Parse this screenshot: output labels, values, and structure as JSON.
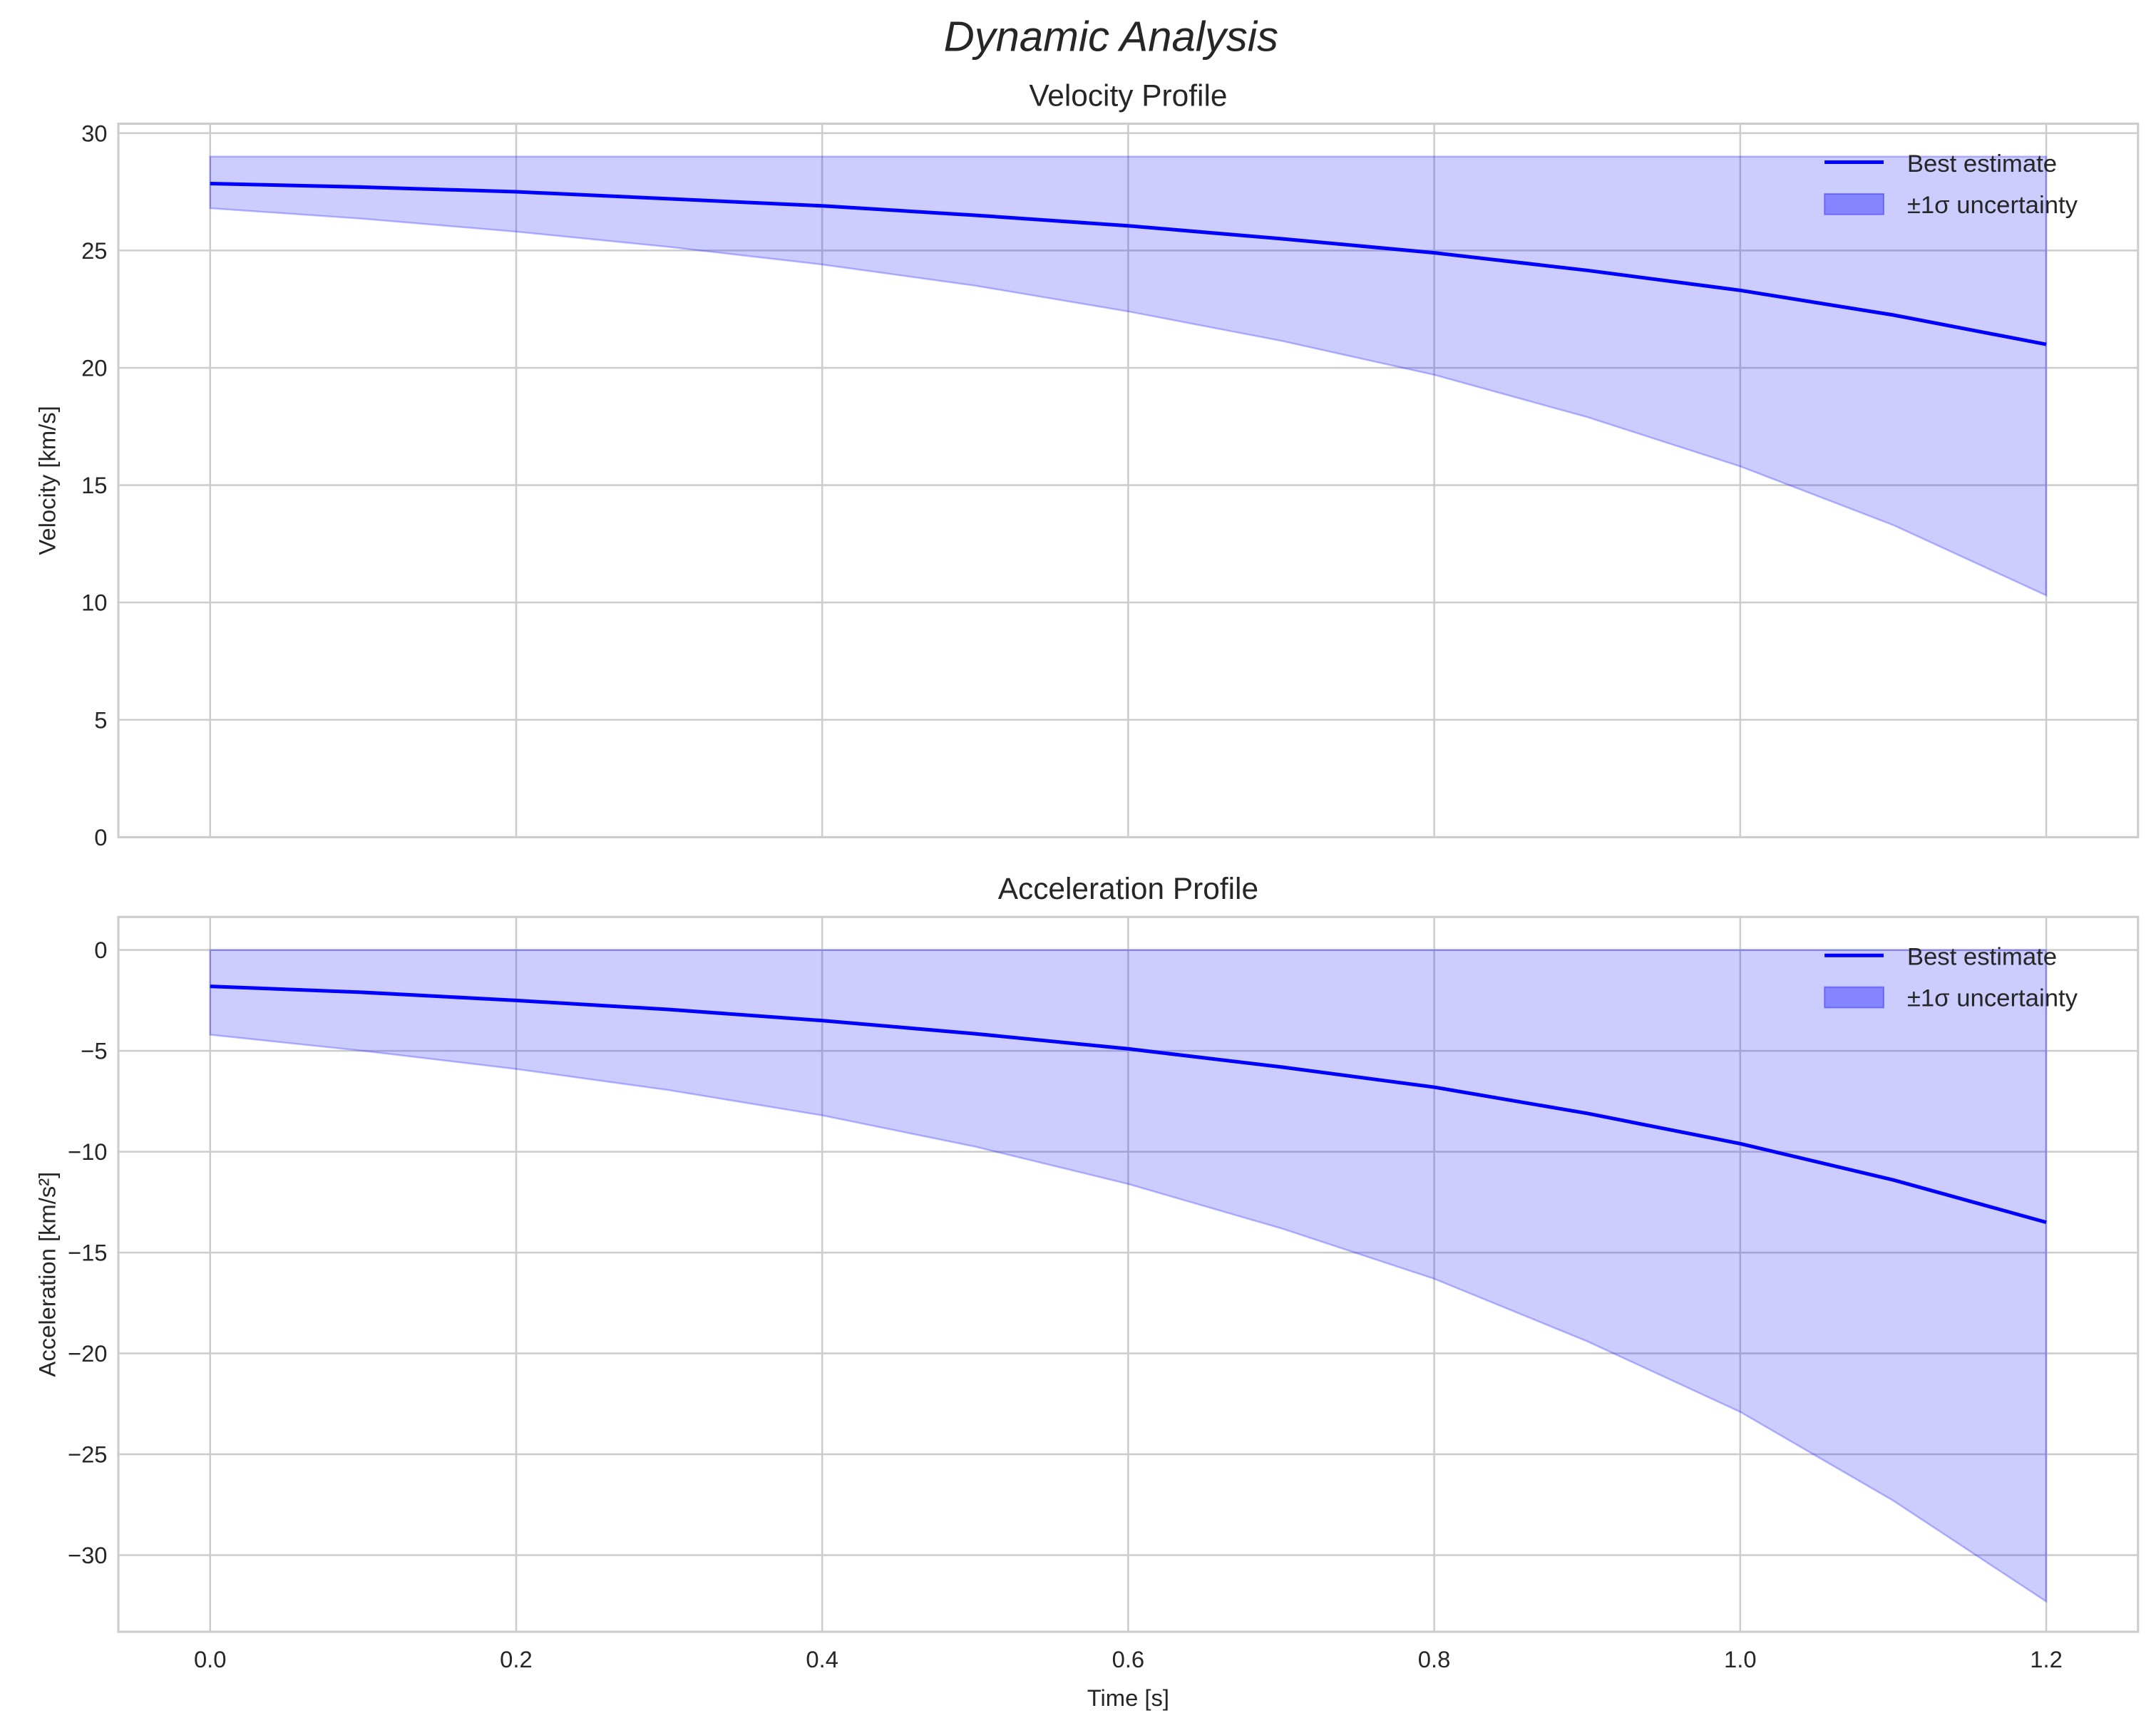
{
  "chart_data": {
    "suptitle": "Dynamic Analysis",
    "colors": {
      "line": "#0000ff",
      "band": "#0000ff"
    },
    "charts": [
      {
        "type": "area",
        "title": "Velocity Profile",
        "xlabel": "",
        "ylabel": "Velocity [km/s]",
        "xlim": [
          -0.06,
          1.26
        ],
        "ylim": [
          0,
          30.4
        ],
        "xticks": [
          0.0,
          0.2,
          0.4,
          0.6,
          0.8,
          1.0,
          1.2
        ],
        "xtick_labels": [],
        "yticks": [
          0,
          5,
          10,
          15,
          20,
          25,
          30
        ],
        "ytick_labels": [
          "0",
          "5",
          "10",
          "15",
          "20",
          "25",
          "30"
        ],
        "grid": true,
        "legend": {
          "placement": "top-right",
          "entries": [
            "Best estimate",
            "±1σ uncertainty"
          ]
        },
        "x": [
          0.0,
          0.1,
          0.2,
          0.3,
          0.4,
          0.5,
          0.6,
          0.7,
          0.8,
          0.9,
          1.0,
          1.1,
          1.2
        ],
        "series": [
          {
            "name": "Best estimate",
            "values": [
              27.85,
              27.7,
              27.5,
              27.2,
              26.9,
              26.5,
              26.05,
              25.5,
              24.9,
              24.15,
              23.3,
              22.25,
              21.0
            ]
          },
          {
            "name": "±1σ upper",
            "values": [
              29,
              29,
              29,
              29,
              29,
              29,
              29,
              29,
              29,
              29,
              29,
              29,
              29
            ]
          },
          {
            "name": "±1σ lower",
            "values": [
              26.8,
              26.35,
              25.8,
              25.15,
              24.4,
              23.5,
              22.4,
              21.15,
              19.7,
              17.9,
              15.8,
              13.3,
              10.3
            ]
          }
        ]
      },
      {
        "type": "area",
        "title": "Acceleration Profile",
        "xlabel": "Time [s]",
        "ylabel": "Acceleration [km/s²]",
        "xlim": [
          -0.06,
          1.26
        ],
        "ylim": [
          -33.8,
          1.64
        ],
        "xticks": [
          0.0,
          0.2,
          0.4,
          0.6,
          0.8,
          1.0,
          1.2
        ],
        "xtick_labels": [
          "0.0",
          "0.2",
          "0.4",
          "0.6",
          "0.8",
          "1.0",
          "1.2"
        ],
        "yticks": [
          0,
          -5,
          -10,
          -15,
          -20,
          -25,
          -30
        ],
        "ytick_labels": [
          "0",
          "−5",
          "−10",
          "−15",
          "−20",
          "−25",
          "−30"
        ],
        "grid": true,
        "legend": {
          "placement": "top-right",
          "entries": [
            "Best estimate",
            "±1σ uncertainty"
          ]
        },
        "x": [
          0.0,
          0.1,
          0.2,
          0.3,
          0.4,
          0.5,
          0.6,
          0.7,
          0.8,
          0.9,
          1.0,
          1.1,
          1.2
        ],
        "series": [
          {
            "name": "Best estimate",
            "values": [
              -1.8,
              -2.1,
              -2.5,
              -2.95,
              -3.5,
              -4.15,
              -4.9,
              -5.8,
              -6.8,
              -8.1,
              -9.6,
              -11.4,
              -13.5
            ]
          },
          {
            "name": "±1σ upper",
            "values": [
              0,
              0,
              0,
              0,
              0,
              0,
              0,
              0,
              0,
              0,
              0,
              0,
              0
            ]
          },
          {
            "name": "±1σ lower",
            "values": [
              -4.2,
              -5.0,
              -5.9,
              -6.95,
              -8.2,
              -9.75,
              -11.6,
              -13.8,
              -16.3,
              -19.4,
              -22.9,
              -27.3,
              -32.3
            ]
          }
        ]
      }
    ]
  }
}
